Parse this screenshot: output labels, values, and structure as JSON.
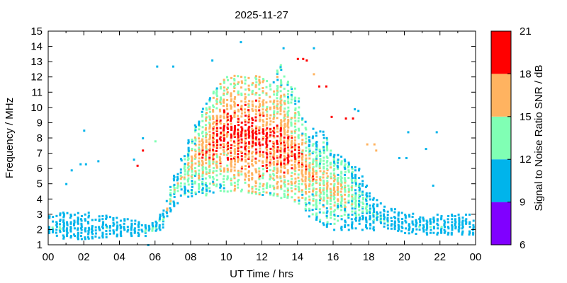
{
  "chart_data": {
    "type": "scatter",
    "title": "2025-11-27",
    "xlabel": "UT Time / hrs",
    "ylabel": "Frequency / MHz",
    "xlim": [
      0,
      24
    ],
    "ylim": [
      1,
      15
    ],
    "x_ticks": [
      "00",
      "02",
      "04",
      "06",
      "08",
      "10",
      "12",
      "14",
      "16",
      "18",
      "20",
      "22",
      "00"
    ],
    "y_ticks": [
      "1",
      "2",
      "3",
      "4",
      "5",
      "6",
      "7",
      "8",
      "9",
      "10",
      "11",
      "12",
      "13",
      "14",
      "15"
    ],
    "grid": false,
    "colorbar": {
      "label": "Signal to Noise Ratio SNR / dB",
      "range": [
        6,
        21
      ],
      "ticks": [
        "6",
        "9",
        "12",
        "15",
        "18",
        "21"
      ],
      "bands": [
        {
          "from": 6,
          "to": 9,
          "color": "#8000ff"
        },
        {
          "from": 9,
          "to": 12,
          "color": "#00b4eb"
        },
        {
          "from": 12,
          "to": 15,
          "color": "#80ffb4"
        },
        {
          "from": 15,
          "to": 18,
          "color": "#ffb360"
        },
        {
          "from": 18,
          "to": 21,
          "color": "#ff0000"
        }
      ]
    },
    "envelope": {
      "hours": [
        0,
        1,
        2,
        3,
        4,
        5,
        5.5,
        6,
        6.5,
        7,
        7.5,
        8,
        8.5,
        9,
        9.5,
        10,
        10.5,
        11,
        11.5,
        12,
        12.5,
        13,
        13.5,
        14,
        14.5,
        15,
        15.5,
        16,
        16.5,
        17,
        17.5,
        18,
        19,
        20,
        21,
        22,
        23,
        24
      ],
      "low_mhz": [
        1.6,
        1.4,
        1.4,
        1.5,
        1.6,
        1.6,
        1.6,
        1.8,
        2.2,
        3.5,
        4.0,
        4.1,
        4.2,
        4.3,
        4.6,
        4.5,
        4.6,
        4.5,
        4.4,
        4.3,
        4.2,
        4.1,
        4.0,
        3.8,
        3.0,
        2.6,
        2.3,
        2.0,
        2.0,
        2.0,
        2.0,
        2.0,
        1.9,
        1.8,
        1.7,
        1.7,
        1.7,
        1.7
      ],
      "high_mhz": [
        3.0,
        3.2,
        3.2,
        3.0,
        2.8,
        2.6,
        2.4,
        2.5,
        3.5,
        5.5,
        6.8,
        8.5,
        9.5,
        11.0,
        11.5,
        12.0,
        12.2,
        12.0,
        12.2,
        12.0,
        11.5,
        13.0,
        12.0,
        11.0,
        9.0,
        8.5,
        8.5,
        7.0,
        6.8,
        6.5,
        6.0,
        4.5,
        3.5,
        3.2,
        3.1,
        3.1,
        3.1,
        3.1
      ],
      "peak_mhz": [
        2.2,
        2.1,
        2.1,
        2.1,
        2.1,
        2.1,
        2.0,
        2.2,
        2.8,
        4.6,
        5.4,
        6.3,
        7.0,
        7.8,
        8.2,
        8.6,
        8.4,
        8.4,
        8.1,
        8.0,
        7.8,
        7.6,
        7.3,
        6.8,
        5.8,
        5.3,
        5.2,
        4.8,
        4.6,
        4.4,
        3.8,
        3.2,
        2.6,
        2.3,
        2.2,
        2.2,
        2.2,
        2.2
      ],
      "peak_snr_db": [
        10.5,
        11,
        10.5,
        11,
        11,
        11.5,
        12,
        13,
        13.5,
        14,
        15,
        16,
        17,
        18,
        19,
        19.5,
        20,
        20,
        20,
        19.5,
        19,
        19,
        18.5,
        18,
        17,
        16,
        16,
        16.5,
        16,
        15,
        13.5,
        12.5,
        11,
        11,
        11,
        11,
        10.5,
        10.5
      ]
    },
    "isolated_points": [
      {
        "x": 10.8,
        "y": 14.3,
        "snr": 10
      },
      {
        "x": 13.2,
        "y": 13.9,
        "snr": 10
      },
      {
        "x": 14.0,
        "y": 13.2,
        "snr": 20
      },
      {
        "x": 14.3,
        "y": 13.2,
        "snr": 20
      },
      {
        "x": 14.5,
        "y": 13.1,
        "snr": 20
      },
      {
        "x": 14.9,
        "y": 13.9,
        "snr": 10
      },
      {
        "x": 14.9,
        "y": 12.2,
        "snr": 16
      },
      {
        "x": 15.2,
        "y": 11.4,
        "snr": 20
      },
      {
        "x": 15.6,
        "y": 11.4,
        "snr": 20
      },
      {
        "x": 15.9,
        "y": 9.4,
        "snr": 20
      },
      {
        "x": 16.7,
        "y": 9.3,
        "snr": 20
      },
      {
        "x": 17.1,
        "y": 9.3,
        "snr": 20
      },
      {
        "x": 17.2,
        "y": 9.9,
        "snr": 10
      },
      {
        "x": 17.4,
        "y": 9.8,
        "snr": 10
      },
      {
        "x": 17.9,
        "y": 7.6,
        "snr": 16
      },
      {
        "x": 18.3,
        "y": 7.6,
        "snr": 16
      },
      {
        "x": 18.4,
        "y": 7.2,
        "snr": 16
      },
      {
        "x": 9.2,
        "y": 13.1,
        "snr": 10
      },
      {
        "x": 1.0,
        "y": 5.0,
        "snr": 10
      },
      {
        "x": 1.3,
        "y": 5.9,
        "snr": 10
      },
      {
        "x": 1.8,
        "y": 6.3,
        "snr": 10
      },
      {
        "x": 2.1,
        "y": 6.3,
        "snr": 10
      },
      {
        "x": 2.0,
        "y": 8.5,
        "snr": 10
      },
      {
        "x": 2.8,
        "y": 6.5,
        "snr": 10
      },
      {
        "x": 4.8,
        "y": 6.6,
        "snr": 10
      },
      {
        "x": 5.0,
        "y": 6.2,
        "snr": 20
      },
      {
        "x": 5.3,
        "y": 7.2,
        "snr": 20
      },
      {
        "x": 5.3,
        "y": 8.0,
        "snr": 10
      },
      {
        "x": 6.0,
        "y": 7.8,
        "snr": 13
      },
      {
        "x": 6.1,
        "y": 12.7,
        "snr": 10
      },
      {
        "x": 7.0,
        "y": 12.7,
        "snr": 10
      },
      {
        "x": 5.6,
        "y": 1.0,
        "snr": 10
      },
      {
        "x": 20.2,
        "y": 8.4,
        "snr": 10
      },
      {
        "x": 21.2,
        "y": 7.3,
        "snr": 10
      },
      {
        "x": 21.8,
        "y": 8.4,
        "snr": 10
      },
      {
        "x": 21.6,
        "y": 4.9,
        "snr": 10
      },
      {
        "x": 20.1,
        "y": 6.7,
        "snr": 10
      },
      {
        "x": 19.7,
        "y": 6.7,
        "snr": 10
      }
    ]
  }
}
